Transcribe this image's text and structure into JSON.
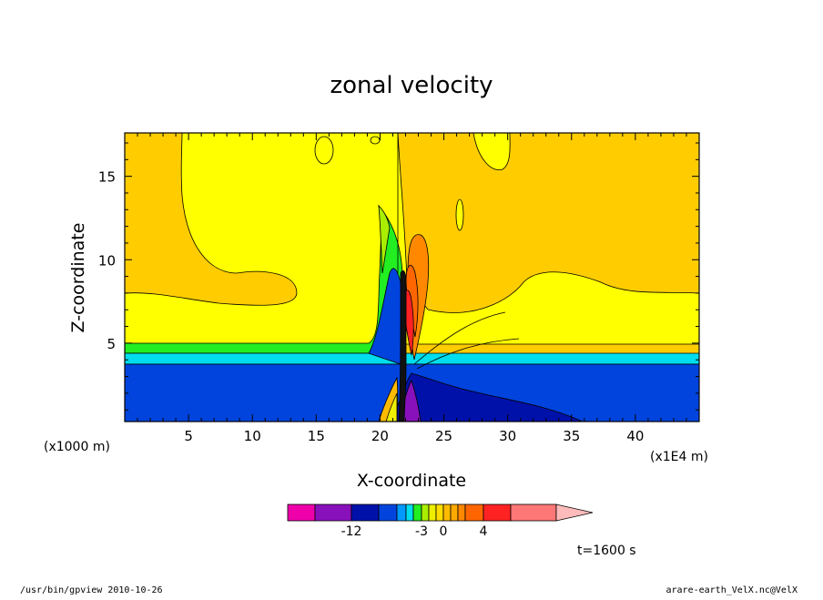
{
  "chart_data": {
    "type": "heatmap",
    "title": "zonal velocity",
    "xlabel": "X-coordinate",
    "ylabel": "Z-coordinate",
    "x_unit": "(x1E4 m)",
    "y_unit": "(x1000 m)",
    "xlim": [
      0,
      45
    ],
    "ylim": [
      0.3,
      17.6
    ],
    "x_ticks": [
      5,
      10,
      15,
      20,
      25,
      30,
      35,
      40
    ],
    "y_ticks": [
      5,
      10,
      15
    ],
    "time_label": "t=1600 s",
    "colorbar": {
      "levels": [
        -16,
        -14,
        -12,
        -10,
        -8,
        -6,
        -4,
        -3,
        -2,
        -1,
        0,
        1,
        2,
        3,
        4,
        6,
        8,
        12
      ],
      "colors": [
        "#ee00aa",
        "#8811bb",
        "#0011aa",
        "#0044dd",
        "#0099ff",
        "#00ddee",
        "#22ee22",
        "#aaee00",
        "#eeee00",
        "#ffdd00",
        "#ffbb00",
        "#ffaa00",
        "#ff8800",
        "#ff6600",
        "#ff2222",
        "#ff7777",
        "#ffbbbb"
      ],
      "tick_labels": [
        "-12",
        "-3",
        "0",
        "4"
      ],
      "extend": "max"
    },
    "grid": false
  },
  "footer": {
    "left": "/usr/bin/gpview  2010-10-26",
    "right": "arare-earth_VelX.nc@VelX"
  }
}
